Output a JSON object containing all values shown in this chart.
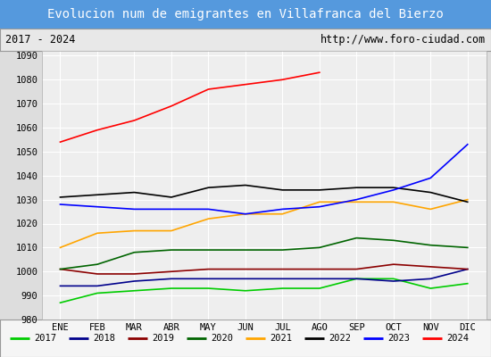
{
  "title": "Evolucion num de emigrantes en Villafranca del Bierzo",
  "subtitle_left": "2017 - 2024",
  "subtitle_right": "http://www.foro-ciudad.com",
  "x_labels": [
    "ENE",
    "FEB",
    "MAR",
    "ABR",
    "MAY",
    "JUN",
    "JUL",
    "AGO",
    "SEP",
    "OCT",
    "NOV",
    "DIC"
  ],
  "ylim": [
    980,
    1092
  ],
  "yticks": [
    980,
    990,
    1000,
    1010,
    1020,
    1030,
    1040,
    1050,
    1060,
    1070,
    1080,
    1090
  ],
  "series": {
    "2017": {
      "color": "#00cc00",
      "data": [
        987,
        991,
        992,
        993,
        993,
        992,
        993,
        993,
        997,
        997,
        993,
        995
      ]
    },
    "2018": {
      "color": "#00008b",
      "data": [
        994,
        994,
        996,
        997,
        997,
        997,
        997,
        997,
        997,
        996,
        997,
        1001
      ]
    },
    "2019": {
      "color": "#8b0000",
      "data": [
        1001,
        999,
        999,
        1000,
        1001,
        1001,
        1001,
        1001,
        1001,
        1003,
        1002,
        1001
      ]
    },
    "2020": {
      "color": "#006400",
      "data": [
        1001,
        1003,
        1008,
        1009,
        1009,
        1009,
        1009,
        1010,
        1014,
        1013,
        1011,
        1010
      ]
    },
    "2021": {
      "color": "#ffa500",
      "data": [
        1010,
        1016,
        1017,
        1017,
        1022,
        1024,
        1024,
        1029,
        1029,
        1029,
        1026,
        1030
      ]
    },
    "2022": {
      "color": "#000000",
      "data": [
        1031,
        1032,
        1033,
        1031,
        1035,
        1036,
        1034,
        1034,
        1035,
        1035,
        1033,
        1029
      ]
    },
    "2023": {
      "color": "#0000ff",
      "data": [
        1028,
        1027,
        1026,
        1026,
        1026,
        1024,
        1026,
        1027,
        1030,
        1034,
        1039,
        1053
      ]
    },
    "2024": {
      "color": "#ff0000",
      "data": [
        1054,
        1059,
        1063,
        1069,
        1076,
        1078,
        1080,
        1083,
        null,
        null,
        null,
        null
      ]
    }
  },
  "title_bg_color": "#5599dd",
  "title_font_color": "#ffffff",
  "subtitle_bg_color": "#e8e8e8",
  "plot_bg_color": "#eeeeee",
  "grid_color": "#ffffff",
  "legend_bg_color": "#f5f5f5",
  "outer_bg_color": "#dddddd"
}
